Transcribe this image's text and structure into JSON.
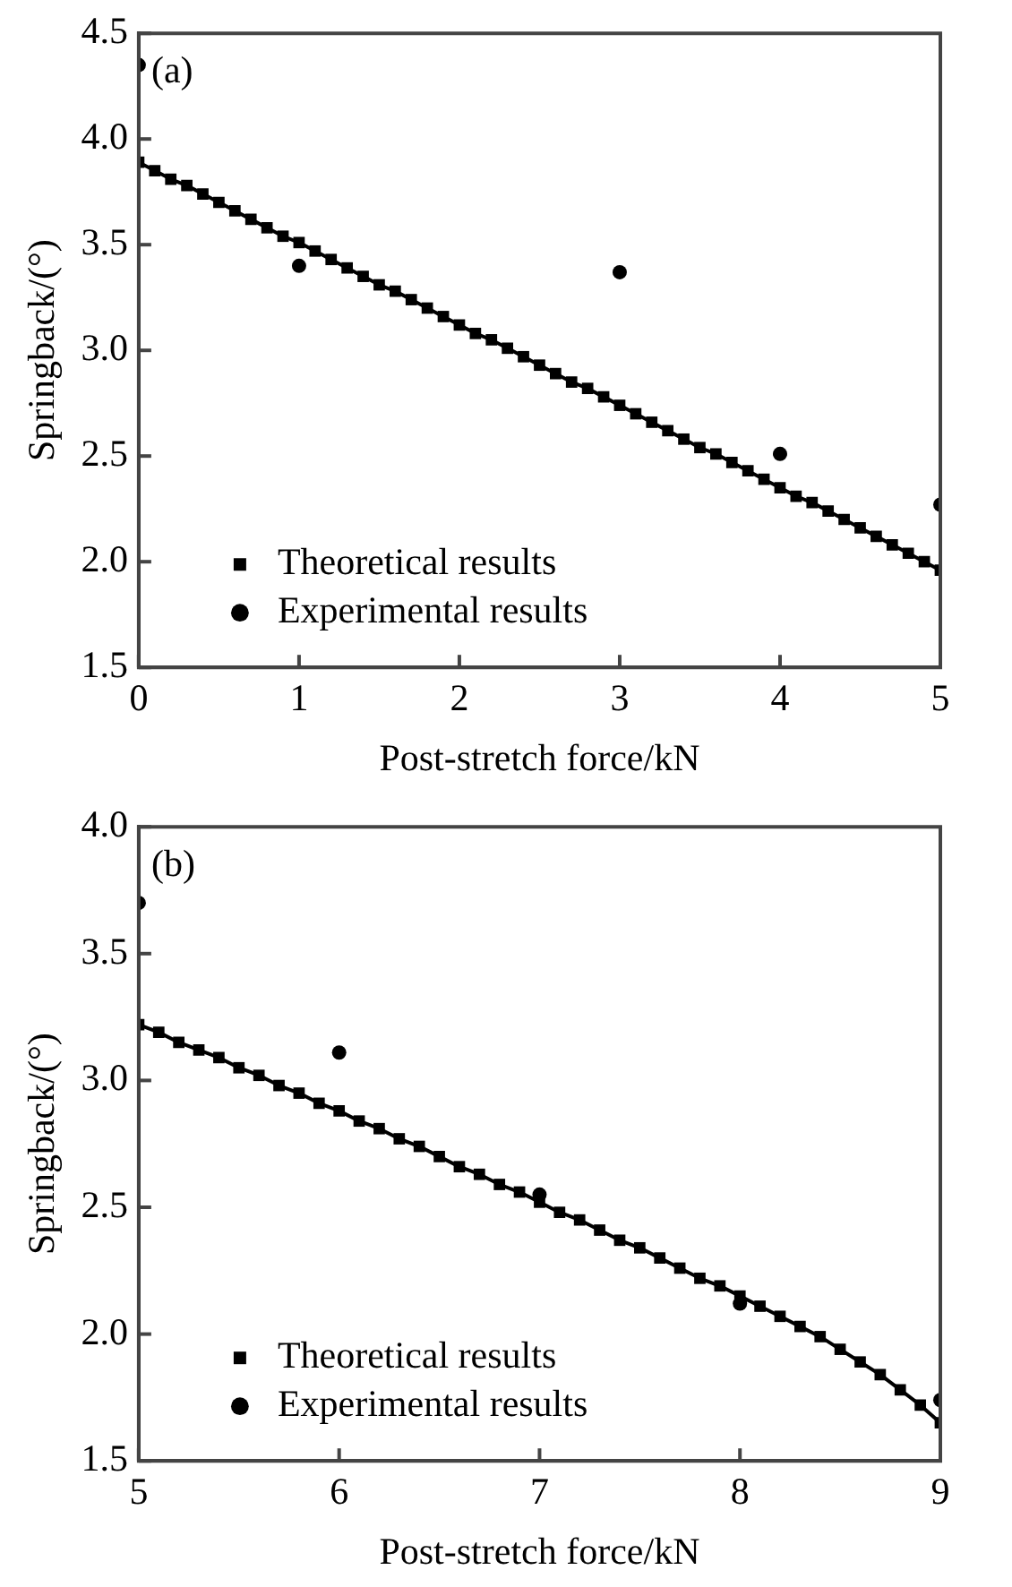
{
  "chart_data": [
    {
      "type": "line",
      "xlabel": "Post-stretch force/kN",
      "ylabel": "Springback/(°)",
      "annotations": [
        "(a)"
      ],
      "xlim": [
        0,
        5
      ],
      "xticks": [
        0,
        1,
        2,
        3,
        4,
        5
      ],
      "ylim": [
        1.5,
        4.5
      ],
      "yticks": [
        1.5,
        {
          "value": 2,
          "label": "2.0"
        },
        2.5,
        {
          "value": 3,
          "label": "3.0"
        },
        3.5,
        {
          "value": 4,
          "label": "4.0"
        },
        4.5
      ],
      "grid": false,
      "legend": "bottom left",
      "series": [
        {
          "name": "Theoretical results",
          "type": "line",
          "marker": "square",
          "line_style": "solid",
          "color": "#000000",
          "x": [
            0,
            0.1,
            0.2,
            0.3,
            0.4,
            0.5,
            0.6,
            0.7,
            0.8,
            0.9,
            1,
            1.1,
            1.2,
            1.3,
            1.4,
            1.5,
            1.6,
            1.7,
            1.8,
            1.9,
            2,
            2.1,
            2.2,
            2.3,
            2.4,
            2.5,
            2.6,
            2.7,
            2.8,
            2.9,
            3,
            3.1,
            3.2,
            3.3,
            3.4,
            3.5,
            3.6,
            3.7,
            3.8,
            3.9,
            4,
            4.1,
            4.2,
            4.3,
            4.4,
            4.5,
            4.6,
            4.7,
            4.8,
            4.9,
            5
          ],
          "values": [
            3.89,
            3.85,
            3.81,
            3.78,
            3.74,
            3.7,
            3.66,
            3.62,
            3.58,
            3.54,
            3.51,
            3.47,
            3.43,
            3.39,
            3.35,
            3.31,
            3.28,
            3.24,
            3.2,
            3.16,
            3.12,
            3.08,
            3.05,
            3.01,
            2.97,
            2.93,
            2.89,
            2.85,
            2.82,
            2.78,
            2.74,
            2.7,
            2.66,
            2.62,
            2.58,
            2.54,
            2.51,
            2.47,
            2.43,
            2.39,
            2.35,
            2.31,
            2.28,
            2.24,
            2.2,
            2.16,
            2.12,
            2.08,
            2.04,
            2.0,
            1.96
          ]
        },
        {
          "name": "Experimental results",
          "type": "scatter",
          "marker": "circle",
          "color": "#000000",
          "x": [
            0,
            1,
            3,
            4,
            5
          ],
          "values": [
            4.35,
            3.4,
            3.37,
            2.51,
            2.27
          ]
        }
      ]
    },
    {
      "type": "line",
      "xlabel": "Post-stretch force/kN",
      "ylabel": "Springback/(°)",
      "annotations": [
        "(b)"
      ],
      "xlim": [
        5,
        9
      ],
      "xticks": [
        5,
        6,
        7,
        8,
        9
      ],
      "ylim": [
        1.5,
        4.0
      ],
      "yticks": [
        1.5,
        {
          "value": 2,
          "label": "2.0"
        },
        2.5,
        {
          "value": 3,
          "label": "3.0"
        },
        3.5,
        {
          "value": 4,
          "label": "4.0"
        }
      ],
      "grid": false,
      "legend": "bottom left",
      "series": [
        {
          "name": "Theoretical results",
          "type": "line",
          "marker": "square",
          "line_style": "solid",
          "color": "#000000",
          "x": [
            5,
            5.1,
            5.2,
            5.3,
            5.4,
            5.5,
            5.6,
            5.7,
            5.8,
            5.9,
            6,
            6.1,
            6.2,
            6.3,
            6.4,
            6.5,
            6.6,
            6.7,
            6.8,
            6.9,
            7,
            7.1,
            7.2,
            7.3,
            7.4,
            7.5,
            7.6,
            7.7,
            7.8,
            7.9,
            8,
            8.1,
            8.2,
            8.3,
            8.4,
            8.5,
            8.6,
            8.7,
            8.8,
            8.9,
            9
          ],
          "values": [
            3.22,
            3.19,
            3.15,
            3.12,
            3.09,
            3.05,
            3.02,
            2.98,
            2.95,
            2.91,
            2.88,
            2.84,
            2.81,
            2.77,
            2.74,
            2.7,
            2.66,
            2.63,
            2.59,
            2.56,
            2.52,
            2.48,
            2.45,
            2.41,
            2.37,
            2.34,
            2.3,
            2.26,
            2.22,
            2.19,
            2.15,
            2.11,
            2.07,
            2.03,
            1.99,
            1.94,
            1.89,
            1.84,
            1.78,
            1.72,
            1.65
          ]
        },
        {
          "name": "Experimental results",
          "type": "scatter",
          "marker": "circle",
          "color": "#000000",
          "x": [
            5,
            6,
            7,
            8,
            9
          ],
          "values": [
            3.7,
            3.11,
            2.55,
            2.12,
            1.74
          ]
        }
      ]
    }
  ]
}
